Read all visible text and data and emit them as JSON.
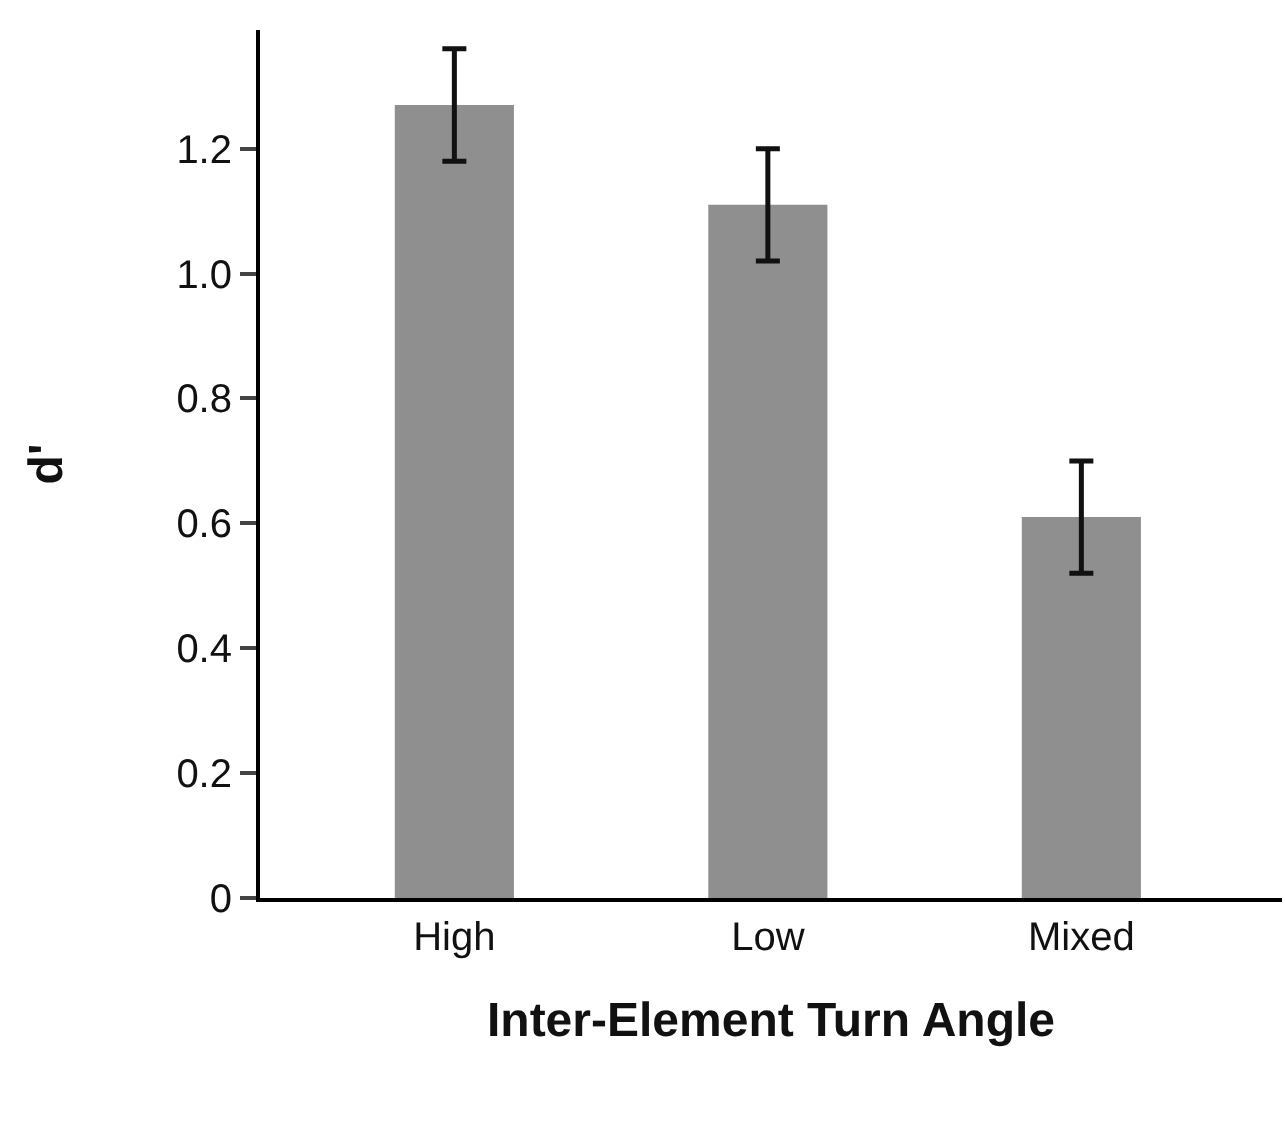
{
  "chart_data": {
    "type": "bar",
    "xlabel": "Inter-Element Turn Angle",
    "ylabel": "d'",
    "categories": [
      "High",
      "Low",
      "Mixed"
    ],
    "values": [
      1.27,
      1.11,
      0.61
    ],
    "errors": [
      [
        1.18,
        1.36
      ],
      [
        1.02,
        1.2
      ],
      [
        0.52,
        0.7
      ]
    ],
    "color": "#8f8f8f",
    "ylim": [
      0,
      1.39
    ],
    "yticks": [
      {
        "value": 0,
        "label": "0"
      },
      {
        "value": 0.2,
        "label": "0.2"
      },
      {
        "value": 0.4,
        "label": "0.4"
      },
      {
        "value": 0.6,
        "label": "0.6"
      },
      {
        "value": 0.8,
        "label": "0.8"
      },
      {
        "value": 1.0,
        "label": "1.0"
      },
      {
        "value": 1.2,
        "label": "1.2"
      }
    ]
  }
}
